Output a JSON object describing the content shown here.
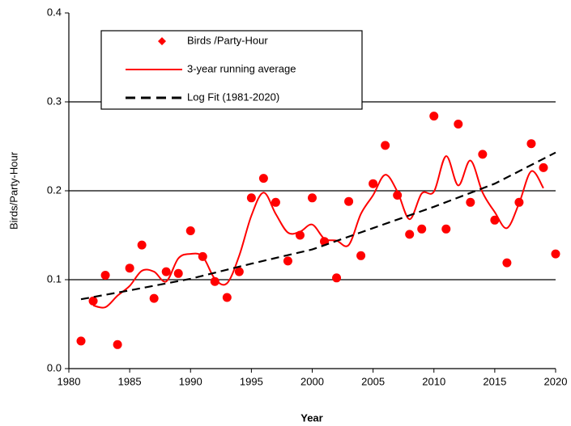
{
  "chart_data": {
    "type": "line",
    "x_label": "Year",
    "y_label": "Birds/Party-Hour",
    "xlim": [
      1980,
      2020
    ],
    "xticks": [
      1980,
      1985,
      1990,
      1995,
      2000,
      2005,
      2010,
      2015,
      2020
    ],
    "ylim": [
      0,
      0.4
    ],
    "yticks": [
      {
        "value": 0,
        "label": "0.0"
      },
      0.1,
      0.2,
      0.3,
      0.4
    ],
    "grid": true,
    "legend": "top-left",
    "series": [
      {
        "name": "Birds /Party-Hour",
        "color": "#ff0000",
        "style": "markers",
        "x": [
          1981,
          1982,
          1983,
          1984,
          1985,
          1986,
          1987,
          1988,
          1989,
          1990,
          1991,
          1992,
          1993,
          1994,
          1995,
          1996,
          1997,
          1998,
          1999,
          2000,
          2001,
          2002,
          2003,
          2004,
          2005,
          2006,
          2007,
          2008,
          2009,
          2010,
          2011,
          2012,
          2013,
          2014,
          2015,
          2016,
          2017,
          2018,
          2019,
          2020
        ],
        "values": [
          0.031,
          0.076,
          0.105,
          0.027,
          0.113,
          0.139,
          0.079,
          0.109,
          0.107,
          0.155,
          0.126,
          0.098,
          0.08,
          0.109,
          0.192,
          0.214,
          0.187,
          0.121,
          0.15,
          0.192,
          0.143,
          0.102,
          0.188,
          0.127,
          0.208,
          0.251,
          0.195,
          0.151,
          0.157,
          0.284,
          0.157,
          0.275,
          0.187,
          0.241,
          0.167,
          0.119,
          0.187,
          0.253,
          0.226,
          0.129
        ]
      },
      {
        "name": "3-year running average",
        "color": "#ff0000",
        "style": "smooth",
        "x": [
          1982,
          1983,
          1984,
          1985,
          1986,
          1987,
          1988,
          1989,
          1990,
          1991,
          1992,
          1993,
          1994,
          1995,
          1996,
          1997,
          1998,
          1999,
          2000,
          2001,
          2002,
          2003,
          2004,
          2005,
          2006,
          2007,
          2008,
          2009,
          2010,
          2011,
          2012,
          2013,
          2014,
          2015,
          2016,
          2017,
          2018,
          2019
        ],
        "values": [
          0.071,
          0.069,
          0.082,
          0.093,
          0.11,
          0.109,
          0.098,
          0.124,
          0.129,
          0.126,
          0.101,
          0.096,
          0.127,
          0.172,
          0.198,
          0.174,
          0.153,
          0.154,
          0.162,
          0.146,
          0.144,
          0.139,
          0.174,
          0.195,
          0.218,
          0.199,
          0.168,
          0.197,
          0.199,
          0.239,
          0.206,
          0.234,
          0.198,
          0.176,
          0.158,
          0.186,
          0.222,
          0.203
        ]
      },
      {
        "name": "Log Fit (1981-2020)",
        "color": "#000000",
        "style": "dashed",
        "x": [
          1981,
          1985,
          1990,
          1995,
          2000,
          2005,
          2010,
          2015,
          2020
        ],
        "values": [
          0.078,
          0.088,
          0.101,
          0.118,
          0.134,
          0.158,
          0.182,
          0.208,
          0.243
        ]
      }
    ]
  }
}
